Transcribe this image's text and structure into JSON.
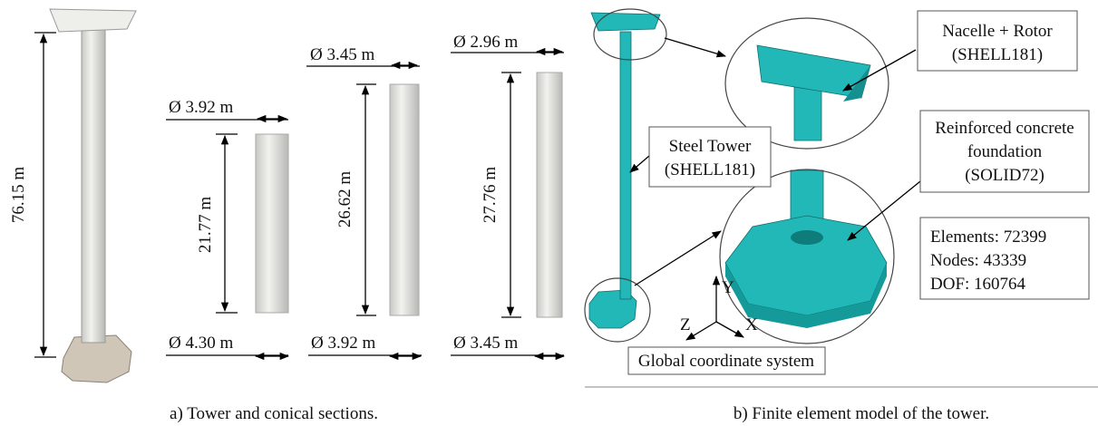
{
  "panel_a": {
    "caption": "a) Tower and conical sections.",
    "tower_height": "76.15 m",
    "sections": [
      {
        "top_diameter": "Ø 3.92 m",
        "height": "21.77 m",
        "bottom_diameter": "Ø 4.30 m"
      },
      {
        "top_diameter": "Ø 3.45 m",
        "height": "26.62 m",
        "bottom_diameter": "Ø 3.92 m"
      },
      {
        "top_diameter": "Ø 2.96 m",
        "height": "27.76 m",
        "bottom_diameter": "Ø 3.45 m"
      }
    ]
  },
  "panel_b": {
    "caption": "b) Finite element model of the tower.",
    "nacelle": [
      "Nacelle + Rotor",
      "(SHELL181)"
    ],
    "tower": [
      "Steel Tower",
      "(SHELL181)"
    ],
    "foundation": [
      "Reinforced concrete",
      "foundation",
      "(SOLID72)"
    ],
    "stats": [
      "Elements: 72399",
      "Nodes: 43339",
      "DOF: 160764"
    ],
    "axes": [
      "Y",
      "Z",
      "X"
    ],
    "coordinate_system": "Global coordinate system"
  }
}
